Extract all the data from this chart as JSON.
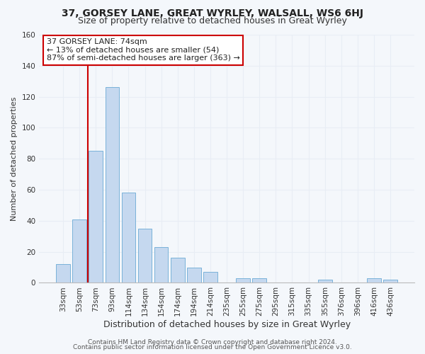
{
  "title": "37, GORSEY LANE, GREAT WYRLEY, WALSALL, WS6 6HJ",
  "subtitle": "Size of property relative to detached houses in Great Wyrley",
  "xlabel": "Distribution of detached houses by size in Great Wyrley",
  "ylabel": "Number of detached properties",
  "bar_labels": [
    "33sqm",
    "53sqm",
    "73sqm",
    "93sqm",
    "114sqm",
    "134sqm",
    "154sqm",
    "174sqm",
    "194sqm",
    "214sqm",
    "235sqm",
    "255sqm",
    "275sqm",
    "295sqm",
    "315sqm",
    "335sqm",
    "355sqm",
    "376sqm",
    "396sqm",
    "416sqm",
    "436sqm"
  ],
  "bar_values": [
    12,
    41,
    85,
    126,
    58,
    35,
    23,
    16,
    10,
    7,
    0,
    3,
    3,
    0,
    0,
    0,
    2,
    0,
    0,
    3,
    2
  ],
  "bar_color": "#c5d8ef",
  "bar_edge_color": "#6aaad4",
  "ylim": [
    0,
    160
  ],
  "yticks": [
    0,
    20,
    40,
    60,
    80,
    100,
    120,
    140,
    160
  ],
  "vline_color": "#cc0000",
  "annotation_text": "37 GORSEY LANE: 74sqm\n← 13% of detached houses are smaller (54)\n87% of semi-detached houses are larger (363) →",
  "annotation_box_color": "#ffffff",
  "annotation_box_edge": "#cc0000",
  "footer_line1": "Contains HM Land Registry data © Crown copyright and database right 2024.",
  "footer_line2": "Contains public sector information licensed under the Open Government Licence v3.0.",
  "background_color": "#f4f7fb",
  "grid_color": "#e8edf5",
  "title_fontsize": 10,
  "subtitle_fontsize": 9,
  "xlabel_fontsize": 9,
  "ylabel_fontsize": 8,
  "tick_fontsize": 7.5,
  "annotation_fontsize": 8,
  "footer_fontsize": 6.5
}
